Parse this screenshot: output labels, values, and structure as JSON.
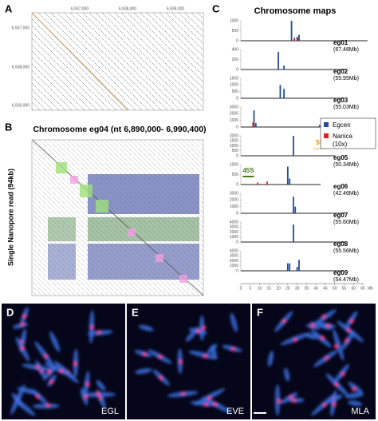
{
  "panel_a": {
    "label": "A",
    "top_ticks": [
      "6,937,000",
      "6,938,000",
      "6,939,000"
    ],
    "left_ticks": [
      "6,937,000",
      "6,938,000",
      "6,939,000"
    ]
  },
  "panel_b": {
    "label": "B",
    "title": "Chromosome eg04 (nt 6,890,000- 6,990,400)",
    "y_label": "Single Nanopore read (94kb)"
  },
  "panel_c": {
    "label": "C",
    "title": "Chromosome maps",
    "x_unit": "Mb",
    "xlim": [
      0,
      65
    ],
    "xticks": [
      0,
      5,
      10,
      15,
      20,
      25,
      30,
      35,
      40,
      45,
      50,
      55,
      60,
      65
    ],
    "legend": {
      "egcen": "Egcen",
      "nanica": "Nanica",
      "nanica_note": "(10x)"
    },
    "annotations": {
      "s45": "45S",
      "s5": "5S"
    },
    "maps": [
      {
        "name": "eg01",
        "size": "(67.48Mb)",
        "yticks": [
          0,
          500,
          1000
        ],
        "egcen": [
          [
            27,
            1000
          ],
          [
            30,
            200
          ],
          [
            31,
            300
          ]
        ],
        "nanica": [
          [
            28.5,
            150
          ],
          [
            30.5,
            120
          ]
        ]
      },
      {
        "name": "eg02",
        "size": "(55.95Mb)",
        "yticks": [
          0,
          200,
          400
        ],
        "egcen": [
          [
            20,
            350
          ],
          [
            23,
            80
          ]
        ],
        "nanica": []
      },
      {
        "name": "eg03",
        "size": "(55.03Mb)",
        "yticks": [
          0,
          500,
          1000,
          1500
        ],
        "egcen": [
          [
            21,
            1000
          ],
          [
            23,
            700
          ]
        ],
        "nanica": []
      },
      {
        "name": "eg04",
        "size": "(44.62Mb)",
        "yticks": [
          0,
          1000,
          2000,
          3000
        ],
        "egcen": [
          [
            7,
            2500
          ],
          [
            8,
            600
          ],
          [
            42,
            300
          ]
        ],
        "nanica": [
          [
            6.5,
            700
          ]
        ]
      },
      {
        "name": "eg05",
        "size": "(50.34Mb)",
        "yticks": [
          0,
          500,
          1000,
          1500,
          2000
        ],
        "egcen": [
          [
            28,
            2000
          ]
        ],
        "nanica": []
      },
      {
        "name": "eg06",
        "size": "(42.46Mb)",
        "yticks": [
          0,
          500,
          1000
        ],
        "egcen": [
          [
            25,
            900
          ],
          [
            26,
            300
          ]
        ],
        "nanica": [
          [
            9,
            100
          ],
          [
            14,
            150
          ]
        ]
      },
      {
        "name": "eg07",
        "size": "(55.60Mb)",
        "yticks": [
          0,
          1000,
          2000,
          3000
        ],
        "egcen": [
          [
            28,
            2500
          ],
          [
            29,
            1000
          ]
        ],
        "nanica": []
      },
      {
        "name": "eg08",
        "size": "(55.56Mb)",
        "yticks": [
          0,
          1000,
          2000,
          3000,
          4000
        ],
        "egcen": [
          [
            28,
            3500
          ]
        ],
        "nanica": []
      },
      {
        "name": "eg09",
        "size": "(54.47Mb)",
        "yticks": [
          0,
          1000,
          2000,
          3000,
          4000
        ],
        "egcen": [
          [
            25,
            1500
          ],
          [
            26,
            1500
          ],
          [
            30,
            800
          ],
          [
            31,
            2200
          ]
        ],
        "nanica": []
      }
    ]
  },
  "panel_d": {
    "label": "D",
    "caption": "EGL"
  },
  "panel_e": {
    "label": "E",
    "caption": "EVE"
  },
  "panel_f": {
    "label": "F",
    "caption": "MLA"
  }
}
